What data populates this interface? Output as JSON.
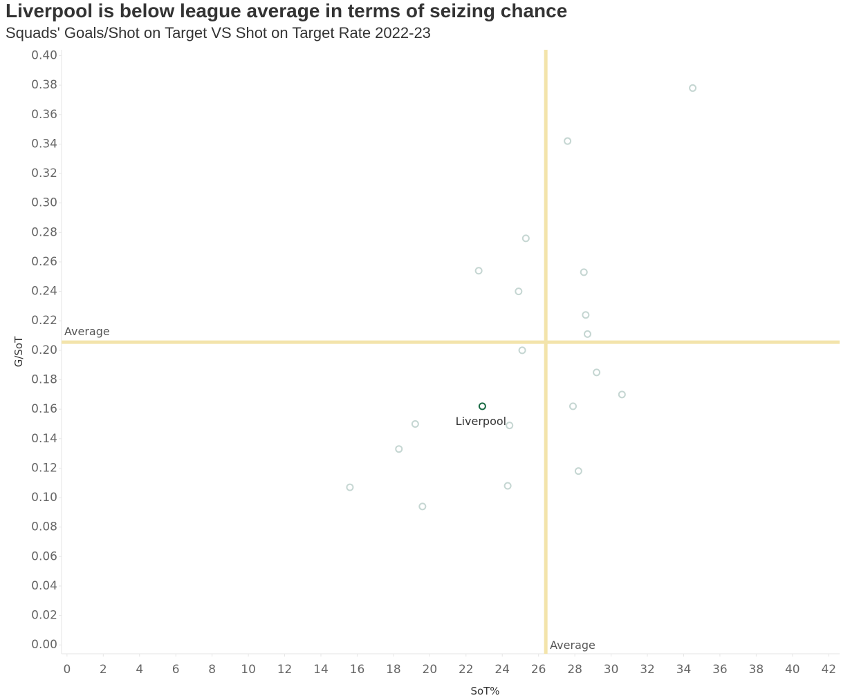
{
  "title": "Liverpool is below league average in terms of seizing chance",
  "subtitle": "Squads' Goals/Shot on Target VS Shot on Target Rate 2022-23",
  "colors": {
    "reference_line": "#f3e4ab",
    "point_default": "#c5d6d2",
    "point_highlight": "#1a6b45",
    "axis_line": "#e6e6e6",
    "tick_text": "#666666"
  },
  "chart_data": {
    "type": "scatter",
    "title": "Liverpool is below league average in terms of seizing chance",
    "subtitle": "Squads' Goals/Shot on Target VS Shot on Target Rate 2022-23",
    "xlabel": "SoT%",
    "ylabel": "G/SoT",
    "xlim": [
      -0.3,
      42.6
    ],
    "ylim": [
      -0.006,
      0.404
    ],
    "x_ticks": [
      "0",
      "2",
      "4",
      "6",
      "8",
      "10",
      "12",
      "14",
      "16",
      "18",
      "20",
      "22",
      "24",
      "26",
      "28",
      "30",
      "32",
      "34",
      "36",
      "38",
      "40",
      "42"
    ],
    "y_ticks": [
      "0.00",
      "0.02",
      "0.04",
      "0.06",
      "0.08",
      "0.10",
      "0.12",
      "0.14",
      "0.16",
      "0.18",
      "0.20",
      "0.22",
      "0.24",
      "0.26",
      "0.28",
      "0.30",
      "0.32",
      "0.34",
      "0.36",
      "0.38",
      "0.40"
    ],
    "grid": false,
    "reference_lines": {
      "x_average": {
        "value": 26.4,
        "label": "Average"
      },
      "y_average": {
        "value": 0.2055,
        "label": "Average"
      }
    },
    "points": [
      {
        "x": 34.5,
        "y": 0.378
      },
      {
        "x": 27.6,
        "y": 0.342
      },
      {
        "x": 25.3,
        "y": 0.276
      },
      {
        "x": 22.7,
        "y": 0.254
      },
      {
        "x": 28.5,
        "y": 0.253
      },
      {
        "x": 24.9,
        "y": 0.24
      },
      {
        "x": 28.6,
        "y": 0.224
      },
      {
        "x": 28.7,
        "y": 0.211
      },
      {
        "x": 25.1,
        "y": 0.2
      },
      {
        "x": 29.2,
        "y": 0.185
      },
      {
        "x": 30.6,
        "y": 0.17
      },
      {
        "x": 22.9,
        "y": 0.162,
        "label": "Liverpool",
        "highlight": true
      },
      {
        "x": 27.9,
        "y": 0.162
      },
      {
        "x": 19.2,
        "y": 0.15
      },
      {
        "x": 24.4,
        "y": 0.149
      },
      {
        "x": 18.3,
        "y": 0.133
      },
      {
        "x": 28.2,
        "y": 0.118
      },
      {
        "x": 15.6,
        "y": 0.107
      },
      {
        "x": 24.3,
        "y": 0.108
      },
      {
        "x": 19.6,
        "y": 0.094
      }
    ]
  }
}
